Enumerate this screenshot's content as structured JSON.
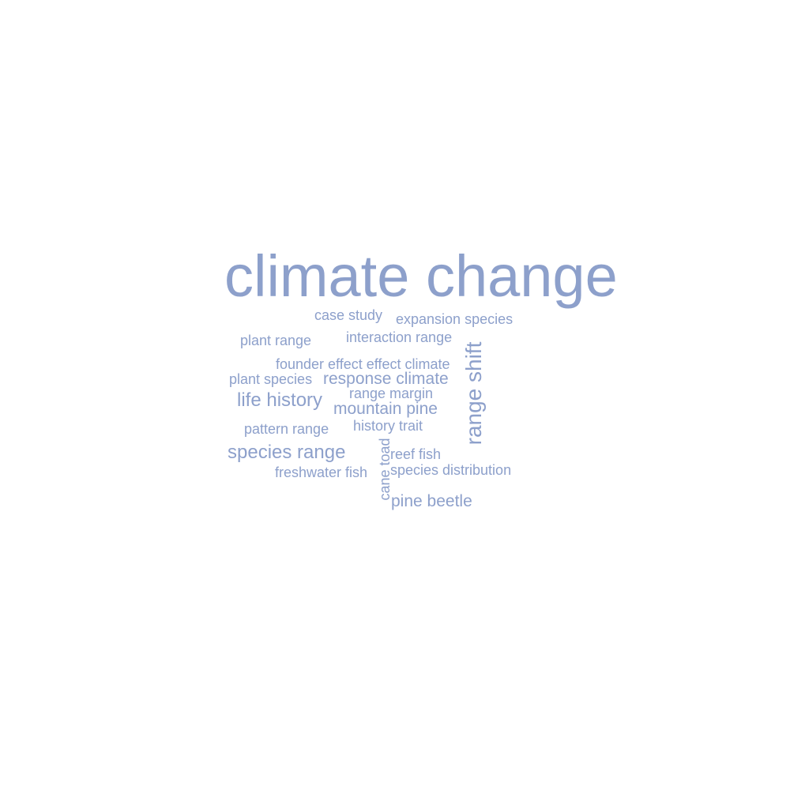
{
  "word_color": "#8da0cb",
  "words": [
    {
      "id": "climate-change",
      "text": "climate change"
    },
    {
      "id": "case-study",
      "text": "case study"
    },
    {
      "id": "expansion-species",
      "text": "expansion species"
    },
    {
      "id": "plant-range",
      "text": "plant range"
    },
    {
      "id": "interaction-range",
      "text": "interaction range"
    },
    {
      "id": "range-shift",
      "text": "range shift"
    },
    {
      "id": "founder-effect-effect-climate",
      "text": "founder effect effect climate"
    },
    {
      "id": "plant-species",
      "text": "plant species"
    },
    {
      "id": "response-climate",
      "text": "response climate"
    },
    {
      "id": "range-margin",
      "text": "range margin"
    },
    {
      "id": "life-history",
      "text": "life history"
    },
    {
      "id": "mountain-pine",
      "text": "mountain pine"
    },
    {
      "id": "history-trait",
      "text": "history trait"
    },
    {
      "id": "pattern-range",
      "text": "pattern range"
    },
    {
      "id": "cane-toad",
      "text": "cane toad"
    },
    {
      "id": "species-range",
      "text": "species range"
    },
    {
      "id": "reef-fish",
      "text": "reef fish"
    },
    {
      "id": "freshwater-fish",
      "text": "freshwater fish"
    },
    {
      "id": "species-distribution",
      "text": "species distribution"
    },
    {
      "id": "pine-beetle",
      "text": "pine beetle"
    }
  ]
}
